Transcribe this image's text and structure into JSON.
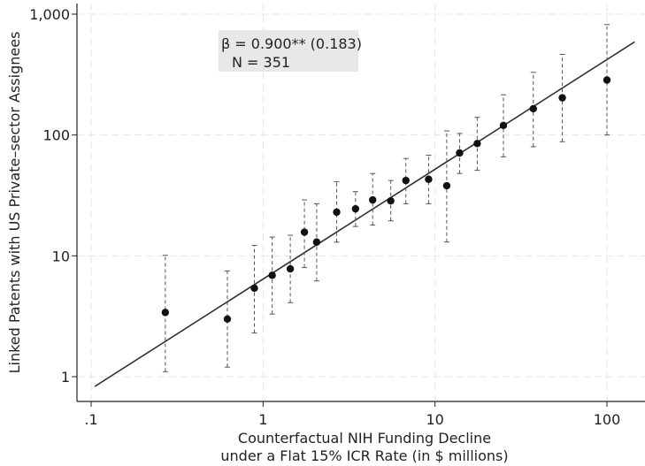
{
  "chart_data": {
    "type": "scatter",
    "xscale": "log",
    "yscale": "log",
    "xlim": [
      0.08,
      150
    ],
    "ylim": [
      0.8,
      1200
    ],
    "x_ticks": [
      0.1,
      1,
      10,
      100
    ],
    "x_tick_labels": [
      ".1",
      "1",
      "10",
      "100"
    ],
    "y_ticks": [
      1,
      10,
      100,
      1000
    ],
    "y_tick_labels": [
      "1",
      "10",
      "100",
      "1,000"
    ],
    "xlabel_line1": "Counterfactual NIH Funding Decline",
    "xlabel_line2": "under a Flat 15% ICR Rate (in $ millions)",
    "ylabel": "Linked Patents with US Private–sector Assignees",
    "grid": true,
    "annotation": {
      "line1": "β = 0.900** (0.183)",
      "line2": "N = 351"
    },
    "fit_line": {
      "x": [
        0.105,
        145
      ],
      "y": [
        0.83,
        590
      ]
    },
    "points": [
      {
        "x": 0.27,
        "y": 3.4,
        "lo": 1.1,
        "hi": 10.1
      },
      {
        "x": 0.62,
        "y": 3.0,
        "lo": 1.2,
        "hi": 7.5
      },
      {
        "x": 0.89,
        "y": 5.4,
        "lo": 2.3,
        "hi": 12.2
      },
      {
        "x": 1.13,
        "y": 6.9,
        "lo": 3.3,
        "hi": 14.3
      },
      {
        "x": 1.44,
        "y": 7.8,
        "lo": 4.1,
        "hi": 14.8
      },
      {
        "x": 1.74,
        "y": 15.7,
        "lo": 8.0,
        "hi": 29.0
      },
      {
        "x": 2.05,
        "y": 13.0,
        "lo": 6.2,
        "hi": 27.0
      },
      {
        "x": 2.68,
        "y": 23.0,
        "lo": 13.0,
        "hi": 41.0
      },
      {
        "x": 3.45,
        "y": 24.5,
        "lo": 17.5,
        "hi": 34.0
      },
      {
        "x": 4.34,
        "y": 29.0,
        "lo": 18.0,
        "hi": 48.0
      },
      {
        "x": 5.53,
        "y": 28.5,
        "lo": 19.5,
        "hi": 42.0
      },
      {
        "x": 6.77,
        "y": 42.0,
        "lo": 27.0,
        "hi": 64.0
      },
      {
        "x": 9.18,
        "y": 43.0,
        "lo": 27.0,
        "hi": 68.0
      },
      {
        "x": 11.7,
        "y": 38.0,
        "lo": 13.0,
        "hi": 108.0
      },
      {
        "x": 13.9,
        "y": 71.0,
        "lo": 48.0,
        "hi": 103.0
      },
      {
        "x": 17.6,
        "y": 85.0,
        "lo": 51.0,
        "hi": 140.0
      },
      {
        "x": 25.0,
        "y": 120.0,
        "lo": 66.0,
        "hi": 215.0
      },
      {
        "x": 37.3,
        "y": 165.0,
        "lo": 80.0,
        "hi": 330.0
      },
      {
        "x": 55.0,
        "y": 203.0,
        "lo": 88.0,
        "hi": 465.0
      },
      {
        "x": 100.0,
        "y": 285.0,
        "lo": 100.0,
        "hi": 820.0
      }
    ]
  }
}
